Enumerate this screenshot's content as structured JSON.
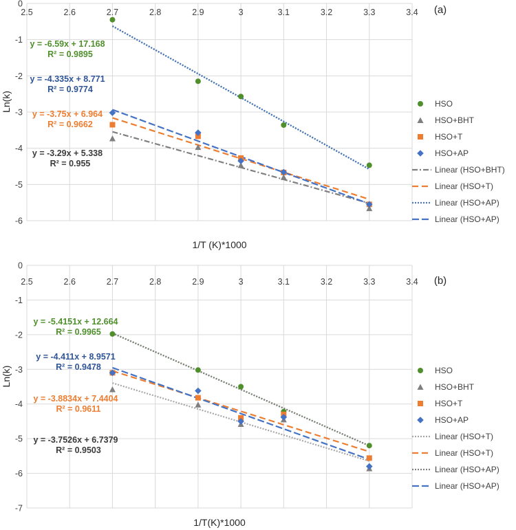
{
  "colors": {
    "hso": "#4f8f2c",
    "bht": "#7f7f7f",
    "t": "#ed7d31",
    "ap": "#4472c4",
    "eq_dark": "#3b3b3b",
    "eq_blue": "#2f5597",
    "grid": "#d9d9d9"
  },
  "chart_data": [
    {
      "type": "scatter",
      "panel_label": "(a)",
      "xlabel": "1/T (K)*1000",
      "ylabel": "Ln(k)",
      "xlim": [
        2.5,
        3.4
      ],
      "ylim": [
        -6,
        0
      ],
      "x_ticks": [
        "2.5",
        "2.6",
        "2.7",
        "2.8",
        "2.9",
        "3",
        "3.1",
        "3.2",
        "3.3",
        "3.4"
      ],
      "y_ticks": [
        "0",
        "-1",
        "-2",
        "-3",
        "-4",
        "-5",
        "-6"
      ],
      "grid": "major gridlines",
      "legend_position": "right",
      "series": [
        {
          "name": "HSO",
          "marker": "circle",
          "color": "#4f8f2c",
          "x": [
            2.7,
            2.9,
            3.0,
            3.1,
            3.3
          ],
          "y": [
            -0.45,
            -2.15,
            -2.57,
            -3.36,
            -4.47
          ]
        },
        {
          "name": "HSO+BHT",
          "marker": "triangle",
          "color": "#7f7f7f",
          "x": [
            2.7,
            2.9,
            3.0,
            3.1,
            3.3
          ],
          "y": [
            -3.73,
            -3.97,
            -4.47,
            -4.8,
            -5.66
          ]
        },
        {
          "name": "HSO+T",
          "marker": "square",
          "color": "#ed7d31",
          "x": [
            2.7,
            2.9,
            3.0,
            3.1,
            3.3
          ],
          "y": [
            -3.35,
            -3.67,
            -4.27,
            -4.67,
            -5.55
          ]
        },
        {
          "name": "HSO+AP",
          "marker": "diamond",
          "color": "#4472c4",
          "x": [
            2.7,
            2.9,
            3.0,
            3.1,
            3.3
          ],
          "y": [
            -3.02,
            -3.57,
            -4.35,
            -4.66,
            -5.55
          ]
        }
      ],
      "trendlines": [
        {
          "name": "Linear (HSO+BHT)",
          "color": "#7f7f7f",
          "dash": "dashdot",
          "slope": -3.29,
          "intercept": 5.338,
          "x_range": [
            2.7,
            3.3
          ]
        },
        {
          "name": "Linear (HSO+T)",
          "color": "#ed7d31",
          "dash": "dash",
          "slope": -3.75,
          "intercept": 6.964,
          "x_range": [
            2.7,
            3.3
          ]
        },
        {
          "name": "Linear (HSO+AP)",
          "color": "#4472c4",
          "dash": "dot",
          "slope": -6.59,
          "intercept": 17.168,
          "x_range": [
            2.7,
            3.3
          ]
        },
        {
          "name": "Linear (HSO+AP)",
          "color": "#4472c4",
          "dash": "longdash",
          "slope": -4.335,
          "intercept": 8.771,
          "x_range": [
            2.7,
            3.3
          ]
        }
      ],
      "hso_trend": {
        "color": "#4f8f2c",
        "slope": -6.59,
        "intercept": 17.168
      },
      "annotations": [
        {
          "line1": "y = -6.59x + 17.168",
          "line2": "R² = 0.9895",
          "color": "#4f8f2c"
        },
        {
          "line1": "y = -4.335x + 8.771",
          "line2": "R² = 0.9774",
          "color": "#2f5597"
        },
        {
          "line1": "y = -3.75x + 6.964",
          "line2": "R² = 0.9662",
          "color": "#ed7d31"
        },
        {
          "line1": "y = -3.29x + 5.338",
          "line2": "R² = 0.955",
          "color": "#3b3b3b"
        }
      ]
    },
    {
      "type": "scatter",
      "panel_label": "(b)",
      "xlabel": "1/T(K)*1000",
      "ylabel": "Ln(k)",
      "xlim": [
        2.5,
        3.4
      ],
      "ylim": [
        -7,
        0
      ],
      "x_ticks": [
        "2.5",
        "2.6",
        "2.7",
        "2.8",
        "2.9",
        "3",
        "3.1",
        "3.2",
        "3.3",
        "3.4"
      ],
      "y_ticks": [
        "0",
        "-1",
        "-2",
        "-3",
        "-4",
        "-5",
        "-6",
        "-7"
      ],
      "grid": "major gridlines",
      "legend_position": "right",
      "series": [
        {
          "name": "HSO",
          "marker": "circle",
          "color": "#4f8f2c",
          "x": [
            2.7,
            2.9,
            3.0,
            3.1,
            3.3
          ],
          "y": [
            -1.98,
            -3.02,
            -3.5,
            -4.22,
            -5.2
          ]
        },
        {
          "name": "HSO+BHT",
          "marker": "triangle",
          "color": "#7f7f7f",
          "x": [
            2.7,
            2.9,
            3.0,
            3.1,
            3.3
          ],
          "y": [
            -3.58,
            -4.02,
            -4.58,
            -4.45,
            -5.86
          ]
        },
        {
          "name": "HSO+T",
          "marker": "square",
          "color": "#ed7d31",
          "x": [
            2.7,
            2.9,
            3.0,
            3.1,
            3.3
          ],
          "y": [
            -3.1,
            -3.82,
            -4.4,
            -4.3,
            -5.56
          ]
        },
        {
          "name": "HSO+AP",
          "marker": "diamond",
          "color": "#4472c4",
          "x": [
            2.7,
            2.9,
            3.0,
            3.1,
            3.3
          ],
          "y": [
            -3.1,
            -3.62,
            -4.5,
            -4.38,
            -5.8
          ]
        }
      ],
      "trendlines": [
        {
          "name": "Linear (HSO+T)",
          "color": "#a6a6a6",
          "dash": "dot",
          "slope": -3.7526,
          "intercept": 6.7379,
          "x_range": [
            2.7,
            3.3
          ]
        },
        {
          "name": "Linear (HSO+T)",
          "color": "#ed7d31",
          "dash": "dash",
          "slope": -3.8834,
          "intercept": 7.4404,
          "x_range": [
            2.7,
            3.3
          ]
        },
        {
          "name": "Linear (HSO+AP)",
          "color": "#7f7f7f",
          "dash": "dot",
          "slope": -5.4151,
          "intercept": 12.664,
          "x_range": [
            2.7,
            3.3
          ]
        },
        {
          "name": "Linear (HSO+AP)",
          "color": "#4472c4",
          "dash": "longdash",
          "slope": -4.411,
          "intercept": 8.9571,
          "x_range": [
            2.7,
            3.3
          ]
        }
      ],
      "hso_trend": {
        "color": "#4f8f2c",
        "slope": -5.4151,
        "intercept": 12.664
      },
      "annotations": [
        {
          "line1": "y = -5.4151x + 12.664",
          "line2": "R² = 0.9965",
          "color": "#4f8f2c"
        },
        {
          "line1": "y = -4.411x + 8.9571",
          "line2": "R² = 0.9478",
          "color": "#2f5597"
        },
        {
          "line1": "y = -3.8834x + 7.4404",
          "line2": "R² = 0.9611",
          "color": "#ed7d31"
        },
        {
          "line1": "y = -3.7526x + 6.7379",
          "line2": "R² = 0.9503",
          "color": "#3b3b3b"
        }
      ]
    }
  ]
}
